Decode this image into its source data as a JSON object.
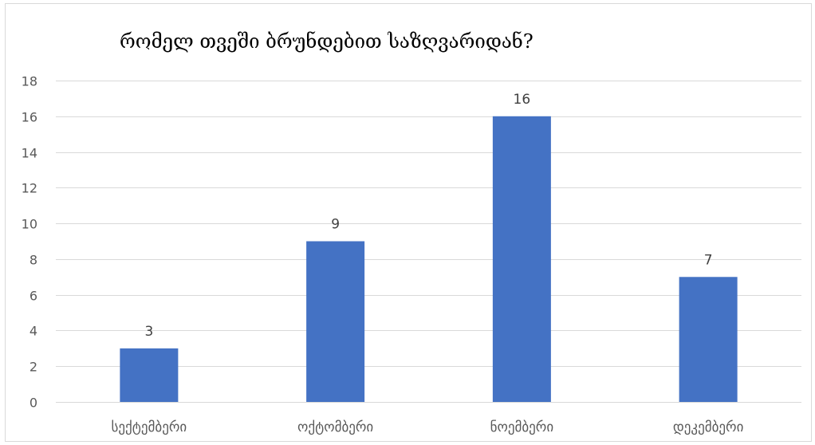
{
  "chart_data": {
    "type": "bar",
    "title": "რომელ თვეში ბრუნდებით საზღვარიდან?",
    "categories": [
      "სექტემბერი",
      "ოქტომბერი",
      "ნოემბერი",
      "დეკემბერი"
    ],
    "values": [
      3,
      9,
      16,
      7
    ],
    "ylim": [
      0,
      18
    ],
    "yticks": [
      0,
      2,
      4,
      6,
      8,
      10,
      12,
      14,
      16,
      18
    ],
    "yticks_text": [
      "0",
      "2",
      "4",
      "6",
      "8",
      "10",
      "12",
      "14",
      "16",
      "18"
    ],
    "data_labels": [
      "3",
      "9",
      "16",
      "7"
    ],
    "grid": true,
    "legend": "none",
    "colors": {
      "bar": "#4472c4",
      "grid": "#d9d9d9",
      "text": "#595959"
    }
  }
}
